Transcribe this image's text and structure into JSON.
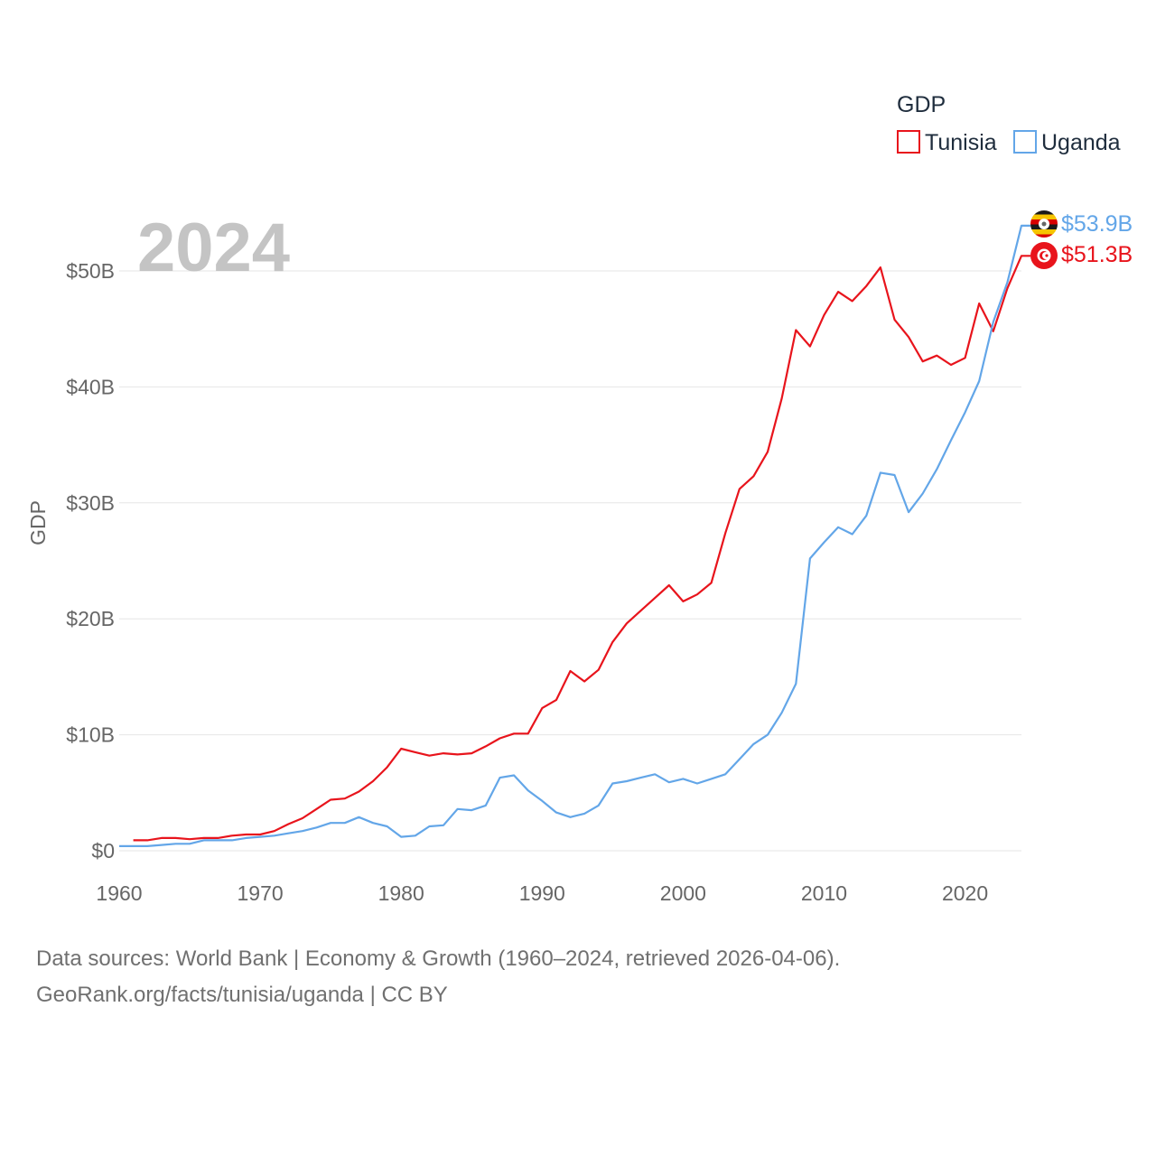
{
  "chart_data": {
    "type": "line",
    "title": "",
    "ylabel": "GDP",
    "xlabel": "",
    "year_label": "2024",
    "legend": {
      "title": "GDP",
      "position": "top-right"
    },
    "xlim": [
      1960,
      2024
    ],
    "ylim": [
      0,
      55
    ],
    "x_ticks": [
      1960,
      1970,
      1980,
      1990,
      2000,
      2010,
      2020
    ],
    "x_tick_labels": [
      "1960",
      "1970",
      "1980",
      "1990",
      "2000",
      "2010",
      "2020"
    ],
    "y_ticks": [
      0,
      10,
      20,
      30,
      40,
      50
    ],
    "y_tick_labels": [
      "$0",
      "$10B",
      "$20B",
      "$30B",
      "$40B",
      "$50B"
    ],
    "units": "billion USD",
    "series": [
      {
        "name": "Tunisia",
        "color": "#e8141c",
        "end_label": "$51.3B",
        "flag": "tunisia-flag",
        "x": [
          1961,
          1962,
          1963,
          1964,
          1965,
          1966,
          1967,
          1968,
          1969,
          1970,
          1971,
          1972,
          1973,
          1974,
          1975,
          1976,
          1977,
          1978,
          1979,
          1980,
          1981,
          1982,
          1983,
          1984,
          1985,
          1986,
          1987,
          1988,
          1989,
          1990,
          1991,
          1992,
          1993,
          1994,
          1995,
          1996,
          1997,
          1998,
          1999,
          2000,
          2001,
          2002,
          2003,
          2004,
          2005,
          2006,
          2007,
          2008,
          2009,
          2010,
          2011,
          2012,
          2013,
          2014,
          2015,
          2016,
          2017,
          2018,
          2019,
          2020,
          2021,
          2022,
          2023,
          2024
        ],
        "values": [
          0.9,
          0.9,
          1.1,
          1.1,
          1.0,
          1.1,
          1.1,
          1.3,
          1.4,
          1.4,
          1.7,
          2.3,
          2.8,
          3.6,
          4.4,
          4.5,
          5.1,
          6.0,
          7.2,
          8.8,
          8.5,
          8.2,
          8.4,
          8.3,
          8.4,
          9.0,
          9.7,
          10.1,
          10.1,
          12.3,
          13.0,
          15.5,
          14.6,
          15.6,
          18.0,
          19.6,
          20.7,
          21.8,
          22.9,
          21.5,
          22.1,
          23.1,
          27.4,
          31.2,
          32.3,
          34.4,
          39.0,
          44.9,
          43.5,
          46.2,
          48.2,
          47.4,
          48.7,
          50.3,
          45.8,
          44.3,
          42.2,
          42.7,
          41.9,
          42.5,
          47.2,
          44.8,
          48.5,
          51.3
        ]
      },
      {
        "name": "Uganda",
        "color": "#63a6e8",
        "end_label": "$53.9B",
        "flag": "uganda-flag",
        "x": [
          1960,
          1961,
          1962,
          1963,
          1964,
          1965,
          1966,
          1967,
          1968,
          1969,
          1970,
          1971,
          1972,
          1973,
          1974,
          1975,
          1976,
          1977,
          1978,
          1979,
          1980,
          1981,
          1982,
          1983,
          1984,
          1985,
          1986,
          1987,
          1988,
          1989,
          1990,
          1991,
          1992,
          1993,
          1994,
          1995,
          1996,
          1997,
          1998,
          1999,
          2000,
          2001,
          2002,
          2003,
          2004,
          2005,
          2006,
          2007,
          2008,
          2009,
          2010,
          2011,
          2012,
          2013,
          2014,
          2015,
          2016,
          2017,
          2018,
          2019,
          2020,
          2021,
          2022,
          2023,
          2024
        ],
        "values": [
          0.4,
          0.4,
          0.4,
          0.5,
          0.6,
          0.6,
          0.9,
          0.9,
          0.9,
          1.1,
          1.2,
          1.3,
          1.5,
          1.7,
          2.0,
          2.4,
          2.4,
          2.9,
          2.4,
          2.1,
          1.2,
          1.3,
          2.1,
          2.2,
          3.6,
          3.5,
          3.9,
          6.3,
          6.5,
          5.2,
          4.3,
          3.3,
          2.9,
          3.2,
          3.9,
          5.8,
          6.0,
          6.3,
          6.6,
          5.9,
          6.2,
          5.8,
          6.2,
          6.6,
          7.9,
          9.2,
          10.0,
          11.9,
          14.4,
          25.2,
          26.6,
          27.9,
          27.3,
          28.9,
          32.6,
          32.4,
          29.2,
          30.8,
          32.9,
          35.4,
          37.8,
          40.5,
          45.6,
          49.0,
          53.9
        ]
      }
    ]
  },
  "footer": {
    "line1": "Data sources: World Bank | Economy & Growth (1960–2024, retrieved 2026-04-06).",
    "line2": "GeoRank.org/facts/tunisia/uganda | CC BY"
  }
}
